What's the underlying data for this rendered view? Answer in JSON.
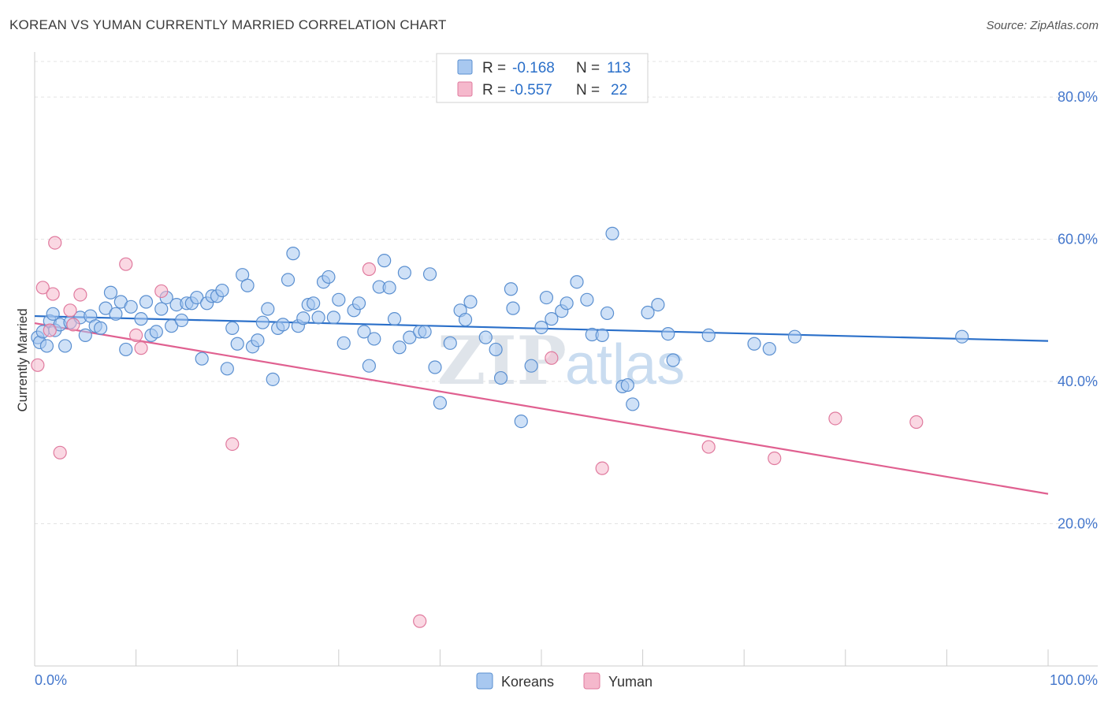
{
  "title": "KOREAN VS YUMAN CURRENTLY MARRIED CORRELATION CHART",
  "source": "Source: ZipAtlas.com",
  "watermark": {
    "zip": "ZIP",
    "atlas": "atlas"
  },
  "colors": {
    "blue_fill": "#a8c8f0",
    "blue_stroke": "#5a8fd0",
    "blue_line": "#2a6fc9",
    "pink_fill": "#f5b8cc",
    "pink_stroke": "#e07a9e",
    "pink_line": "#e06090",
    "tick_text": "#4477cc"
  },
  "legend": {
    "rows": [
      {
        "r_label": "R =",
        "r_value": "-0.168",
        "n_label": "N =",
        "n_value": "113"
      },
      {
        "r_label": "R =",
        "r_value": "-0.557",
        "n_label": "N =",
        "n_value": "22"
      }
    ]
  },
  "chart_data": {
    "type": "scatter",
    "title": "KOREAN VS YUMAN CURRENTLY MARRIED CORRELATION CHART",
    "xlabel": "",
    "ylabel": "Currently Married",
    "xlim": [
      0,
      100
    ],
    "ylim": [
      0,
      85
    ],
    "x_tick_labels": [
      "0.0%",
      "100.0%"
    ],
    "y_ticks": [
      20,
      40,
      60,
      80
    ],
    "y_tick_labels": [
      "20.0%",
      "40.0%",
      "60.0%",
      "80.0%"
    ],
    "grid": true,
    "legend_position": "top-center",
    "series": [
      {
        "name": "Koreans",
        "r": -0.168,
        "n": 113,
        "trend": [
          [
            0,
            49.2
          ],
          [
            100,
            45.7
          ]
        ],
        "points": [
          [
            0.3,
            46.2
          ],
          [
            0.5,
            45.5
          ],
          [
            0.8,
            47.0
          ],
          [
            1.2,
            45.0
          ],
          [
            1.5,
            48.5
          ],
          [
            1.8,
            49.5
          ],
          [
            2.0,
            47.2
          ],
          [
            2.5,
            48.0
          ],
          [
            3.0,
            45.0
          ],
          [
            3.5,
            48.3
          ],
          [
            4.5,
            49.0
          ],
          [
            5.0,
            46.5
          ],
          [
            5.5,
            49.2
          ],
          [
            6.0,
            47.8
          ],
          [
            6.5,
            47.5
          ],
          [
            7.0,
            50.3
          ],
          [
            7.5,
            52.5
          ],
          [
            8.0,
            49.5
          ],
          [
            8.5,
            51.2
          ],
          [
            9.0,
            44.5
          ],
          [
            9.5,
            50.5
          ],
          [
            10.5,
            48.8
          ],
          [
            11.0,
            51.2
          ],
          [
            11.5,
            46.5
          ],
          [
            12.0,
            47.0
          ],
          [
            12.5,
            50.2
          ],
          [
            13.0,
            51.8
          ],
          [
            13.5,
            47.8
          ],
          [
            14.0,
            50.8
          ],
          [
            14.5,
            48.6
          ],
          [
            15.0,
            51.0
          ],
          [
            15.5,
            51.0
          ],
          [
            16.0,
            51.8
          ],
          [
            16.5,
            43.2
          ],
          [
            17.0,
            51.0
          ],
          [
            17.5,
            52.0
          ],
          [
            18.0,
            52.0
          ],
          [
            18.5,
            52.8
          ],
          [
            19.0,
            41.8
          ],
          [
            19.5,
            47.5
          ],
          [
            20.0,
            45.3
          ],
          [
            20.5,
            55.0
          ],
          [
            21.0,
            53.5
          ],
          [
            21.5,
            44.9
          ],
          [
            22.0,
            45.8
          ],
          [
            22.5,
            48.3
          ],
          [
            23.0,
            50.2
          ],
          [
            23.5,
            40.3
          ],
          [
            24.0,
            47.5
          ],
          [
            24.5,
            48.0
          ],
          [
            25.0,
            54.3
          ],
          [
            25.5,
            58.0
          ],
          [
            26.0,
            47.8
          ],
          [
            26.5,
            48.9
          ],
          [
            27.0,
            50.8
          ],
          [
            27.5,
            51.0
          ],
          [
            28.0,
            49.0
          ],
          [
            28.5,
            54.0
          ],
          [
            29.0,
            54.7
          ],
          [
            29.5,
            49.0
          ],
          [
            30.0,
            51.5
          ],
          [
            30.5,
            45.4
          ],
          [
            31.5,
            50.0
          ],
          [
            32.0,
            51.0
          ],
          [
            32.5,
            47.0
          ],
          [
            33.0,
            42.2
          ],
          [
            33.5,
            46.0
          ],
          [
            34.0,
            53.3
          ],
          [
            34.5,
            57.0
          ],
          [
            35.0,
            53.2
          ],
          [
            35.5,
            48.8
          ],
          [
            36.0,
            44.8
          ],
          [
            36.5,
            55.3
          ],
          [
            37.0,
            46.2
          ],
          [
            38.0,
            47.0
          ],
          [
            38.5,
            47.0
          ],
          [
            39.0,
            55.1
          ],
          [
            39.5,
            42.0
          ],
          [
            40.0,
            37.0
          ],
          [
            41.0,
            45.4
          ],
          [
            42.0,
            50.0
          ],
          [
            42.5,
            48.7
          ],
          [
            43.0,
            51.2
          ],
          [
            44.5,
            46.2
          ],
          [
            45.5,
            44.5
          ],
          [
            46.0,
            40.5
          ],
          [
            47.0,
            53.0
          ],
          [
            47.2,
            50.3
          ],
          [
            48.0,
            34.4
          ],
          [
            49.0,
            42.2
          ],
          [
            50.0,
            47.6
          ],
          [
            50.5,
            51.8
          ],
          [
            51.0,
            48.8
          ],
          [
            52.0,
            49.9
          ],
          [
            52.5,
            51.0
          ],
          [
            53.5,
            54.0
          ],
          [
            54.5,
            51.5
          ],
          [
            55.0,
            46.6
          ],
          [
            56.0,
            46.5
          ],
          [
            56.5,
            49.6
          ],
          [
            57.0,
            60.8
          ],
          [
            58.0,
            39.3
          ],
          [
            58.5,
            39.5
          ],
          [
            59.0,
            36.8
          ],
          [
            60.5,
            49.7
          ],
          [
            61.5,
            50.8
          ],
          [
            62.5,
            46.7
          ],
          [
            63.0,
            43.0
          ],
          [
            66.5,
            46.5
          ],
          [
            71.0,
            45.3
          ],
          [
            72.5,
            44.6
          ],
          [
            75.0,
            46.3
          ],
          [
            91.5,
            46.3
          ]
        ]
      },
      {
        "name": "Yuman",
        "r": -0.557,
        "n": 22,
        "trend": [
          [
            0,
            48.2
          ],
          [
            100,
            24.2
          ]
        ],
        "points": [
          [
            0.3,
            42.3
          ],
          [
            0.8,
            53.2
          ],
          [
            1.5,
            47.2
          ],
          [
            1.8,
            52.3
          ],
          [
            2.0,
            59.5
          ],
          [
            2.5,
            30.0
          ],
          [
            3.5,
            50.0
          ],
          [
            3.8,
            48.0
          ],
          [
            4.5,
            52.2
          ],
          [
            9.0,
            56.5
          ],
          [
            10.0,
            46.5
          ],
          [
            10.5,
            44.7
          ],
          [
            12.5,
            52.7
          ],
          [
            19.5,
            31.2
          ],
          [
            33.0,
            55.8
          ],
          [
            38.0,
            6.3
          ],
          [
            51.0,
            43.3
          ],
          [
            56.0,
            27.8
          ],
          [
            66.5,
            30.8
          ],
          [
            73.0,
            29.2
          ],
          [
            79.0,
            34.8
          ],
          [
            87.0,
            34.3
          ]
        ]
      }
    ]
  }
}
